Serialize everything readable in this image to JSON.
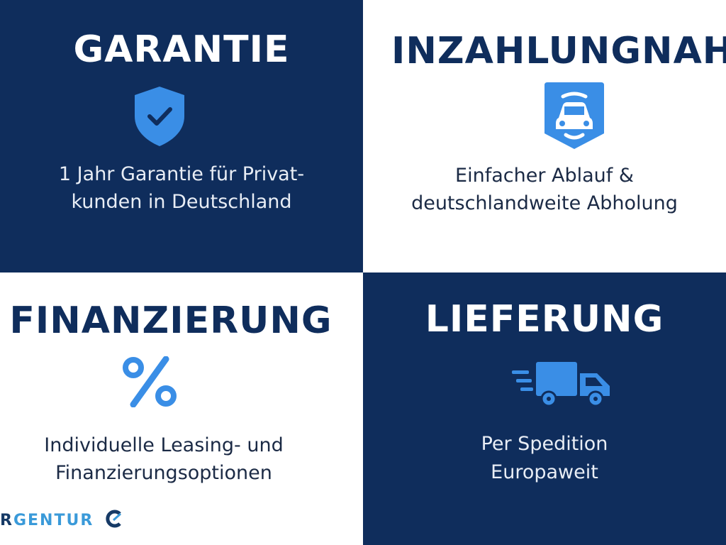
{
  "colors": {
    "navy": "#0f2d5c",
    "accent": "#3a8ee6"
  },
  "tiles": [
    {
      "title": "GARANTIE",
      "icon": "shield-check-icon",
      "line1": "1 Jahr Garantie für Privat-",
      "line2": "kunden in Deutschland"
    },
    {
      "title": "INZAHLUNGNAHME",
      "icon": "car-badge-icon",
      "line1": "Einfacher Ablauf &",
      "line2": "deutschlandweite Abholung"
    },
    {
      "title": "FINANZIERUNG",
      "icon": "percent-icon",
      "line1": "Individuelle Leasing- und",
      "line2": "Finanzierungsoptionen"
    },
    {
      "title": "LIEFERUNG",
      "icon": "delivery-truck-icon",
      "line1": "Per Spedition",
      "line2": "Europaweit"
    }
  ],
  "logo": {
    "text_r": "R",
    "text_rest": "GENTUR"
  }
}
